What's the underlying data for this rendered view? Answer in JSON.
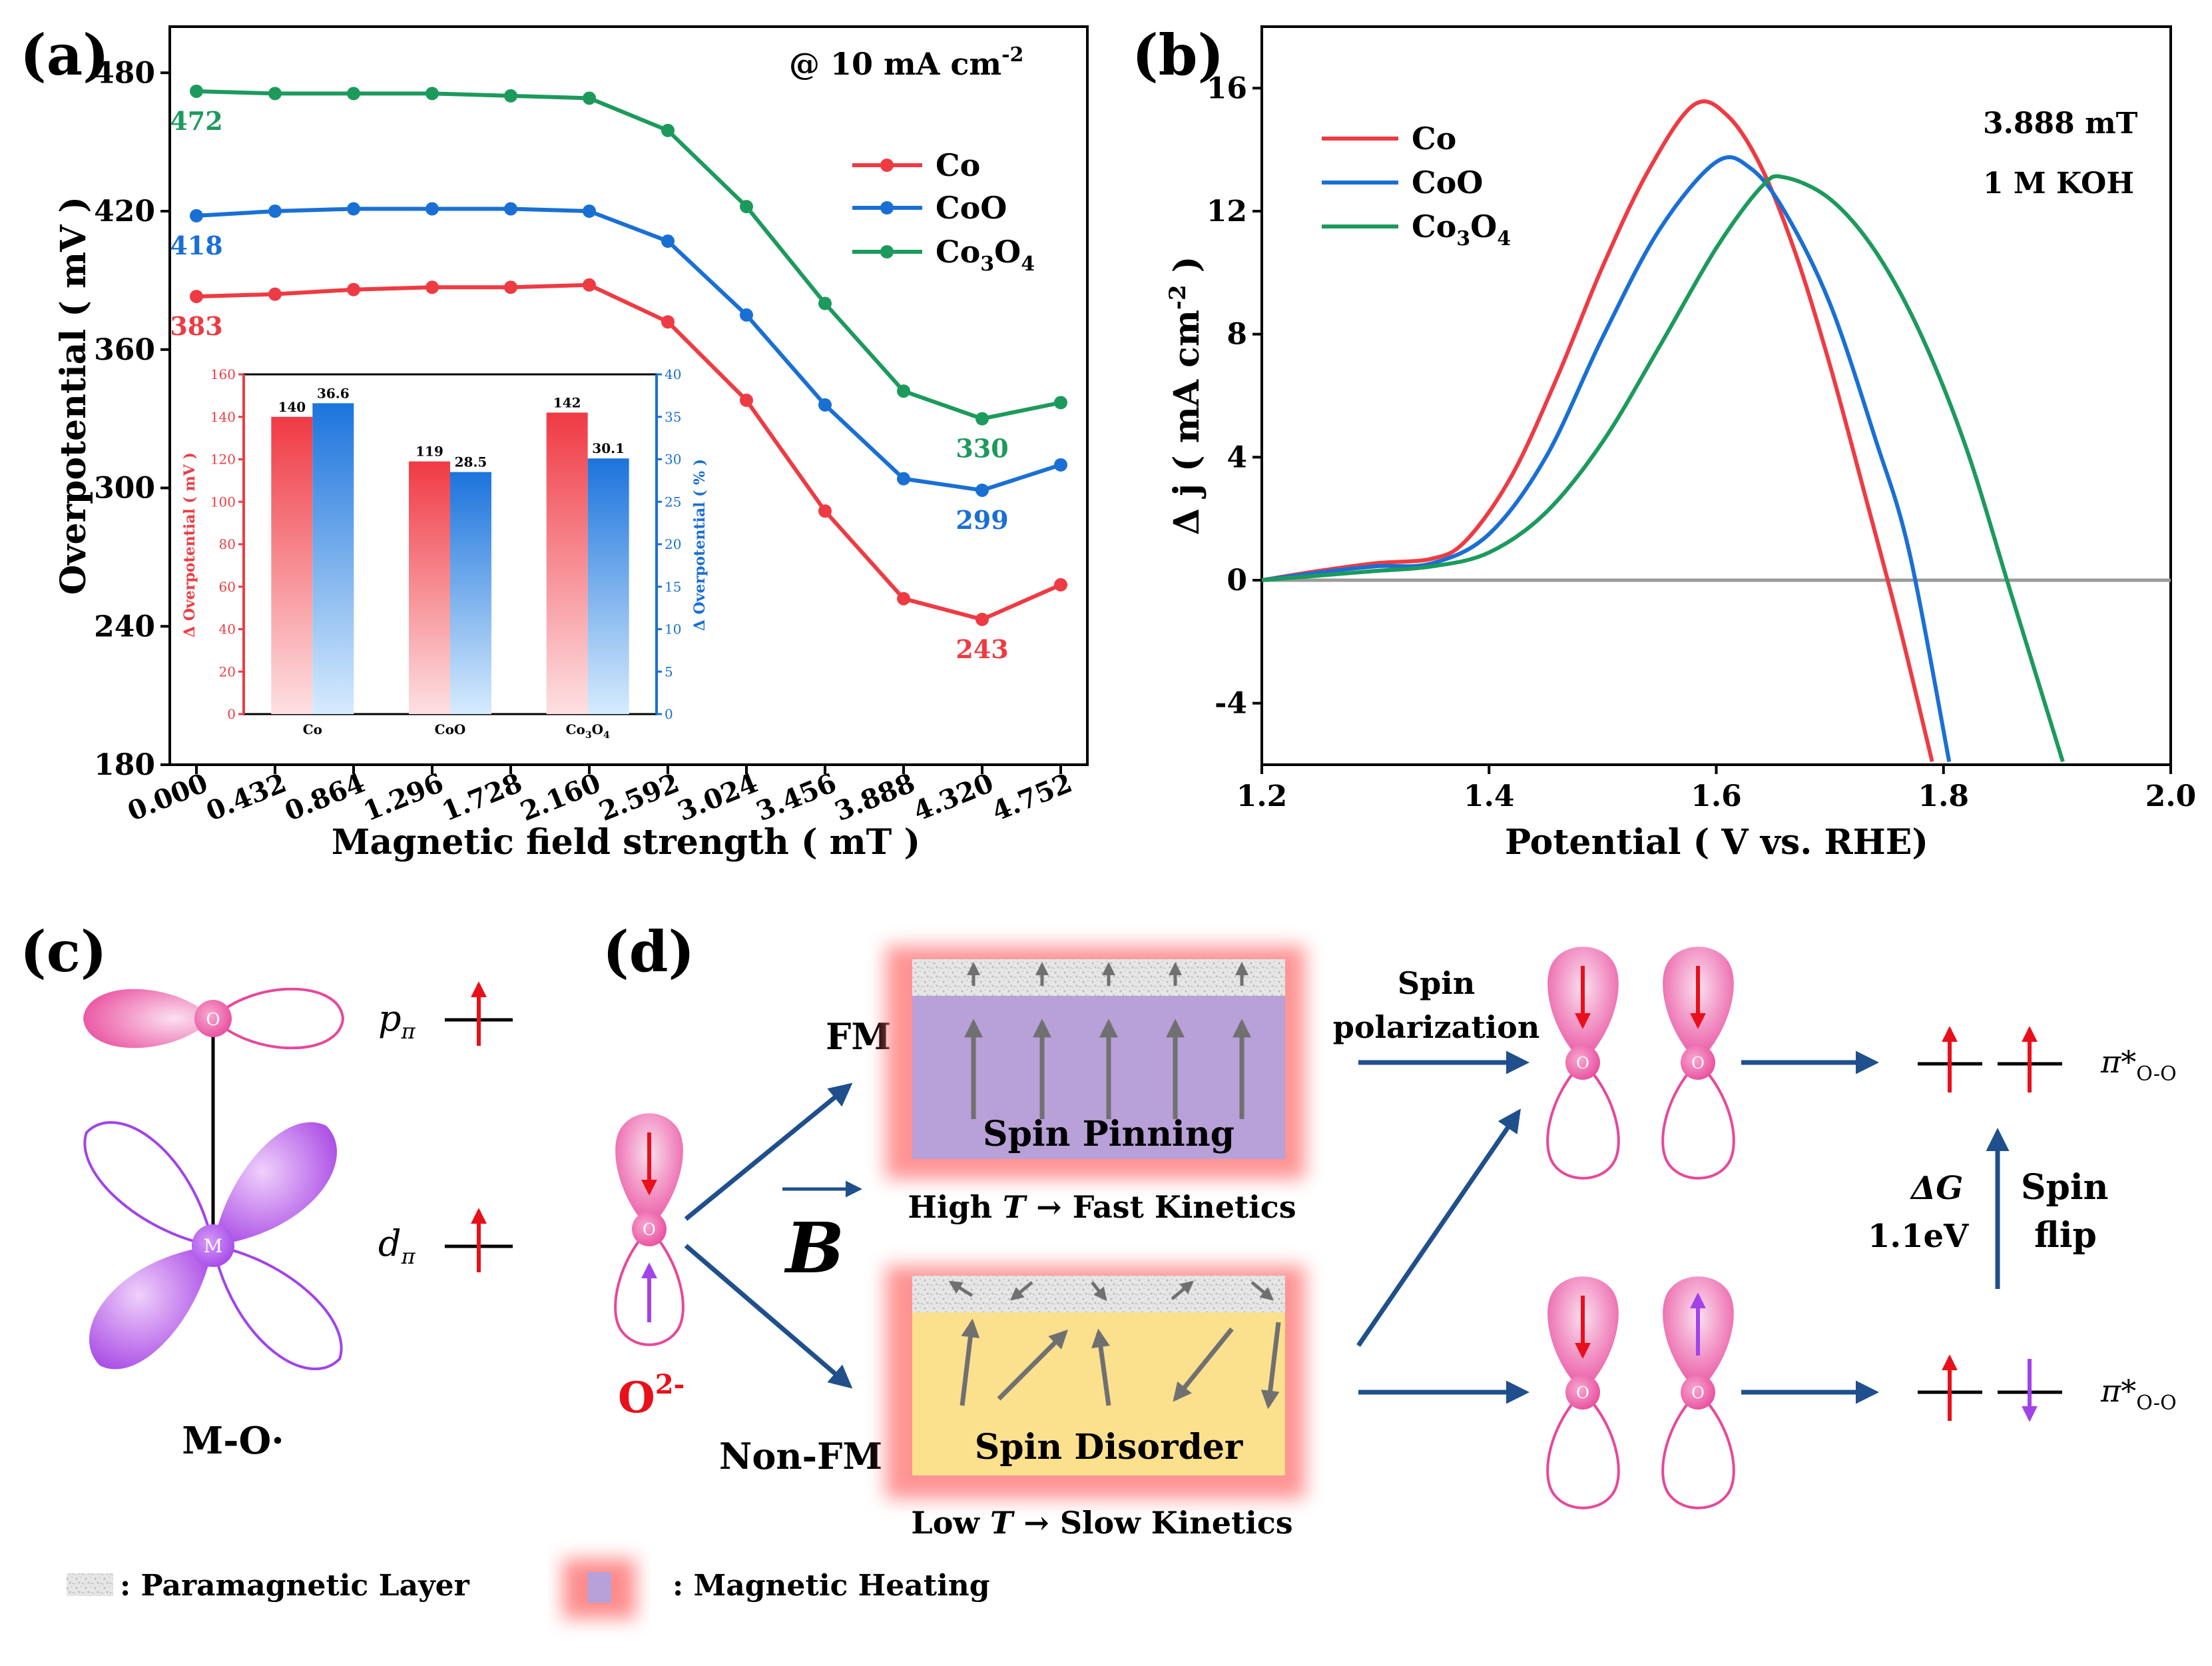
{
  "panel_labels": {
    "a": "(a)",
    "b": "(b)",
    "c": "(c)",
    "d": "(d)"
  },
  "colors": {
    "co": "#ee3b43",
    "coo": "#1a6fd4",
    "co3o4": "#1c9a5c",
    "pink": "#e8479b",
    "purple": "#a243e8",
    "arrow_blue": "#1f4f8c",
    "red_arrow": "#e8101a",
    "grey_arrow": "#707070"
  },
  "chart_data": [
    {
      "type": "line",
      "panel": "a",
      "annotation": "@ 10 mA cm",
      "annotation_sup": "-2",
      "xlabel": "Magnetic field strength ( mT )",
      "ylabel": "Overpotential ( mV )",
      "x": [
        0.0,
        0.432,
        0.864,
        1.296,
        1.728,
        2.16,
        2.592,
        3.024,
        3.456,
        3.888,
        4.32,
        4.752
      ],
      "x_ticklabels": [
        "0.000",
        "0.432",
        "0.864",
        "1.296",
        "1.728",
        "2.160",
        "2.592",
        "3.024",
        "3.456",
        "3.888",
        "4.320",
        "4.752"
      ],
      "ylim": [
        180,
        500
      ],
      "yticks": [
        180,
        240,
        300,
        360,
        420,
        480
      ],
      "series": [
        {
          "name": "Co",
          "color": "#ee3b43",
          "values": [
            383,
            384,
            386,
            387,
            387,
            388,
            372,
            338,
            290,
            252,
            243,
            258
          ]
        },
        {
          "name": "CoO",
          "color": "#1a6fd4",
          "values": [
            418,
            420,
            421,
            421,
            421,
            420,
            407,
            375,
            336,
            304,
            299,
            310
          ]
        },
        {
          "name": "Co3O4",
          "color": "#1c9a5c",
          "values": [
            472,
            471,
            471,
            471,
            470,
            469,
            455,
            422,
            380,
            342,
            330,
            337
          ]
        }
      ],
      "point_labels": [
        {
          "text": "472",
          "series": "Co3O4",
          "index": 0
        },
        {
          "text": "418",
          "series": "CoO",
          "index": 0
        },
        {
          "text": "383",
          "series": "Co",
          "index": 0
        },
        {
          "text": "330",
          "series": "Co3O4",
          "index": 10
        },
        {
          "text": "299",
          "series": "CoO",
          "index": 10
        },
        {
          "text": "243",
          "series": "Co",
          "index": 10
        }
      ],
      "legend": {
        "position": "top-right",
        "labels": [
          "Co",
          "CoO",
          "Co"
        ],
        "sub": [
          "",
          "",
          "3"
        ],
        "after": [
          "",
          "",
          "O"
        ],
        "sub2": [
          "",
          "",
          "4"
        ]
      }
    },
    {
      "type": "bar",
      "panel": "a-inset",
      "categories": [
        "Co",
        "CoO",
        "Co3O4"
      ],
      "cat_labels": [
        "Co",
        "CoO",
        "Co"
      ],
      "cat_sub": [
        "",
        "",
        "3"
      ],
      "cat_after": [
        "",
        "",
        "O"
      ],
      "cat_sub2": [
        "",
        "",
        "4"
      ],
      "ylabel_left": "Δ Overpotential ( mV )",
      "ylabel_right": "Δ Overpotential ( % )",
      "ylim_left": [
        0,
        160
      ],
      "yticks_left": [
        0,
        20,
        40,
        60,
        80,
        100,
        120,
        140,
        160
      ],
      "ylim_right": [
        0,
        40
      ],
      "yticks_right": [
        0,
        5,
        10,
        15,
        20,
        25,
        30,
        35,
        40
      ],
      "series": [
        {
          "name": "Δ Overpotential ( mV )",
          "axis": "left",
          "color": "#ee3b43",
          "values": [
            140,
            119,
            142
          ],
          "labels": [
            "140",
            "119",
            "142"
          ]
        },
        {
          "name": "Δ Overpotential ( % )",
          "axis": "right",
          "color": "#1a6fd4",
          "values": [
            36.6,
            28.5,
            30.1
          ],
          "labels": [
            "36.6",
            "28.5",
            "30.1"
          ]
        }
      ]
    },
    {
      "type": "line",
      "panel": "b",
      "xlabel": "Potential ( V vs. RHE)",
      "ylabel_main": "Δ j ( mA cm",
      "ylabel_sup": "-2",
      "ylabel_end": " )",
      "xlim": [
        1.2,
        2.0
      ],
      "xticks": [
        1.2,
        1.4,
        1.6,
        1.8,
        2.0
      ],
      "x_ticklabels": [
        "1.2",
        "1.4",
        "1.6",
        "1.8",
        "2.0"
      ],
      "ylim": [
        -6,
        18
      ],
      "yticks": [
        -4,
        0,
        4,
        8,
        12,
        16
      ],
      "y_ticklabels": [
        "-4",
        "0",
        "4",
        "8",
        "12",
        "16"
      ],
      "annotations": [
        "3.888 mT",
        "1 M KOH"
      ],
      "baseline": 0,
      "series": [
        {
          "name": "Co",
          "color": "#ee3b43",
          "points": [
            [
              1.2,
              0
            ],
            [
              1.25,
              0.3
            ],
            [
              1.3,
              0.55
            ],
            [
              1.35,
              0.7
            ],
            [
              1.38,
              1.3
            ],
            [
              1.42,
              3.4
            ],
            [
              1.46,
              6.6
            ],
            [
              1.5,
              10.2
            ],
            [
              1.54,
              13.3
            ],
            [
              1.58,
              15.45
            ],
            [
              1.61,
              15.1
            ],
            [
              1.64,
              13.4
            ],
            [
              1.67,
              10.6
            ],
            [
              1.7,
              7.0
            ],
            [
              1.73,
              2.9
            ],
            [
              1.76,
              -1.3
            ],
            [
              1.79,
              -5.9
            ]
          ]
        },
        {
          "name": "CoO",
          "color": "#1a6fd4",
          "points": [
            [
              1.2,
              0
            ],
            [
              1.25,
              0.25
            ],
            [
              1.3,
              0.45
            ],
            [
              1.35,
              0.55
            ],
            [
              1.4,
              1.5
            ],
            [
              1.45,
              4.0
            ],
            [
              1.5,
              7.9
            ],
            [
              1.55,
              11.4
            ],
            [
              1.6,
              13.6
            ],
            [
              1.63,
              13.4
            ],
            [
              1.66,
              12.0
            ],
            [
              1.7,
              9.0
            ],
            [
              1.74,
              4.6
            ],
            [
              1.77,
              0.9
            ],
            [
              1.805,
              -5.9
            ]
          ]
        },
        {
          "name": "Co3O4",
          "color": "#1c9a5c",
          "points": [
            [
              1.2,
              0
            ],
            [
              1.25,
              0.15
            ],
            [
              1.3,
              0.3
            ],
            [
              1.35,
              0.45
            ],
            [
              1.4,
              0.9
            ],
            [
              1.45,
              2.2
            ],
            [
              1.5,
              4.5
            ],
            [
              1.55,
              7.6
            ],
            [
              1.6,
              10.8
            ],
            [
              1.64,
              12.8
            ],
            [
              1.66,
              13.1
            ],
            [
              1.7,
              12.4
            ],
            [
              1.74,
              10.7
            ],
            [
              1.78,
              8.0
            ],
            [
              1.82,
              4.3
            ],
            [
              1.86,
              -0.5
            ],
            [
              1.905,
              -5.9
            ]
          ]
        }
      ],
      "legend": {
        "position": "top-left",
        "labels": [
          "Co",
          "CoO",
          "Co"
        ],
        "sub": [
          "",
          "",
          "3"
        ],
        "after": [
          "",
          "",
          "O"
        ],
        "sub2": [
          "",
          "",
          "4"
        ]
      }
    }
  ],
  "panel_c": {
    "o_label": "O",
    "m_label": "M",
    "p_label": "p",
    "p_sub": "π",
    "d_label": "d",
    "d_sub": "π",
    "caption": "M-O·"
  },
  "panel_d": {
    "o2_label": "O",
    "o2_sup": "2-",
    "b_label": "B",
    "fm_label": "FM",
    "nonfm_label": "Non-FM",
    "spin_pinning": "Spin Pinning",
    "spin_disorder": "Spin Disorder",
    "high_t": "High ",
    "high_t_italic": "T",
    "high_t_rest": " → Fast Kinetics",
    "low_t": "Low ",
    "low_t_italic": "T",
    "low_t_rest": " → Slow Kinetics",
    "spin_polarization_1": "Spin",
    "spin_polarization_2": "polarization",
    "pi_star": "π*",
    "pi_sub": "O-O",
    "delta_g": "ΔG",
    "delta_g_val": "1.1eV",
    "spin_flip_1": "Spin",
    "spin_flip_2": "flip",
    "legend_paramagnetic": ": Paramagnetic Layer",
    "legend_heating": ": Magnetic Heating"
  }
}
